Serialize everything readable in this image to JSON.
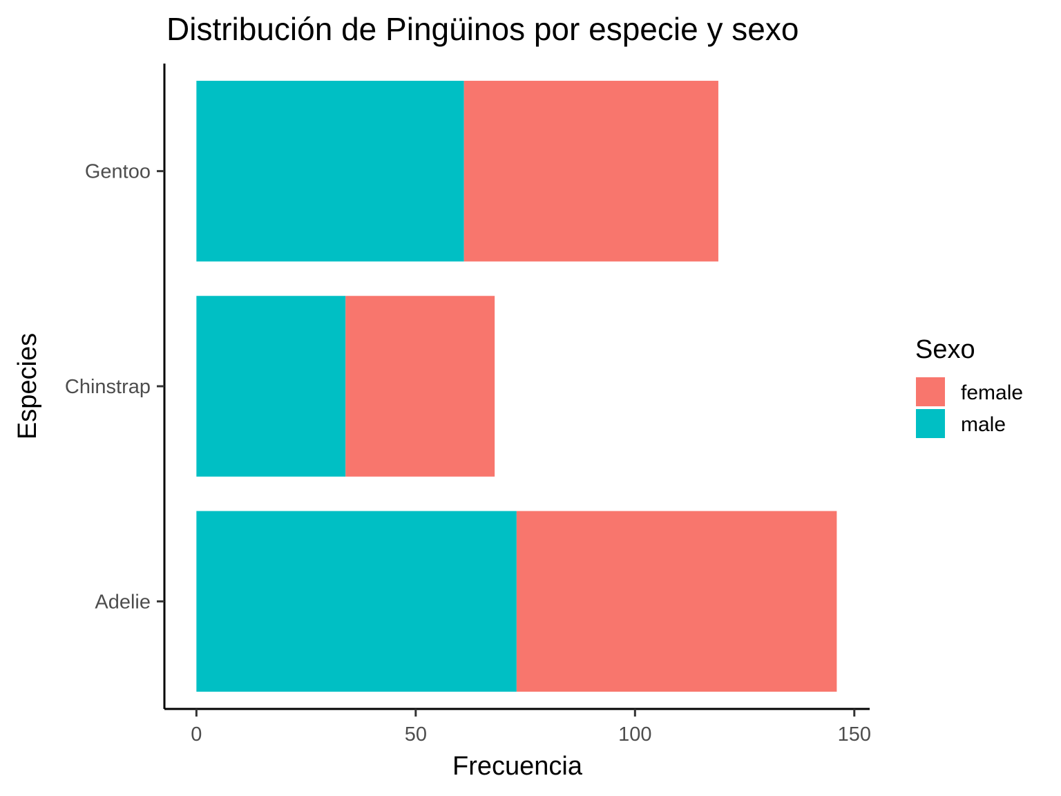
{
  "chart_data": {
    "type": "bar",
    "orientation": "horizontal",
    "stacked": true,
    "title": "Distribución de Pingüinos por especie y sexo",
    "xlabel": "Frecuencia",
    "ylabel": "Especies",
    "xlim": [
      -7.3,
      153.5
    ],
    "x_ticks": [
      0,
      50,
      100,
      150
    ],
    "categories": [
      "Adelie",
      "Chinstrap",
      "Gentoo"
    ],
    "series": [
      {
        "name": "male",
        "color": "#00BFC4",
        "values": [
          73,
          34,
          61
        ]
      },
      {
        "name": "female",
        "color": "#F8766D",
        "values": [
          73,
          34,
          58
        ]
      }
    ],
    "legend": {
      "title": "Sexo",
      "position": "right",
      "order": [
        "female",
        "male"
      ]
    },
    "grid": false
  }
}
